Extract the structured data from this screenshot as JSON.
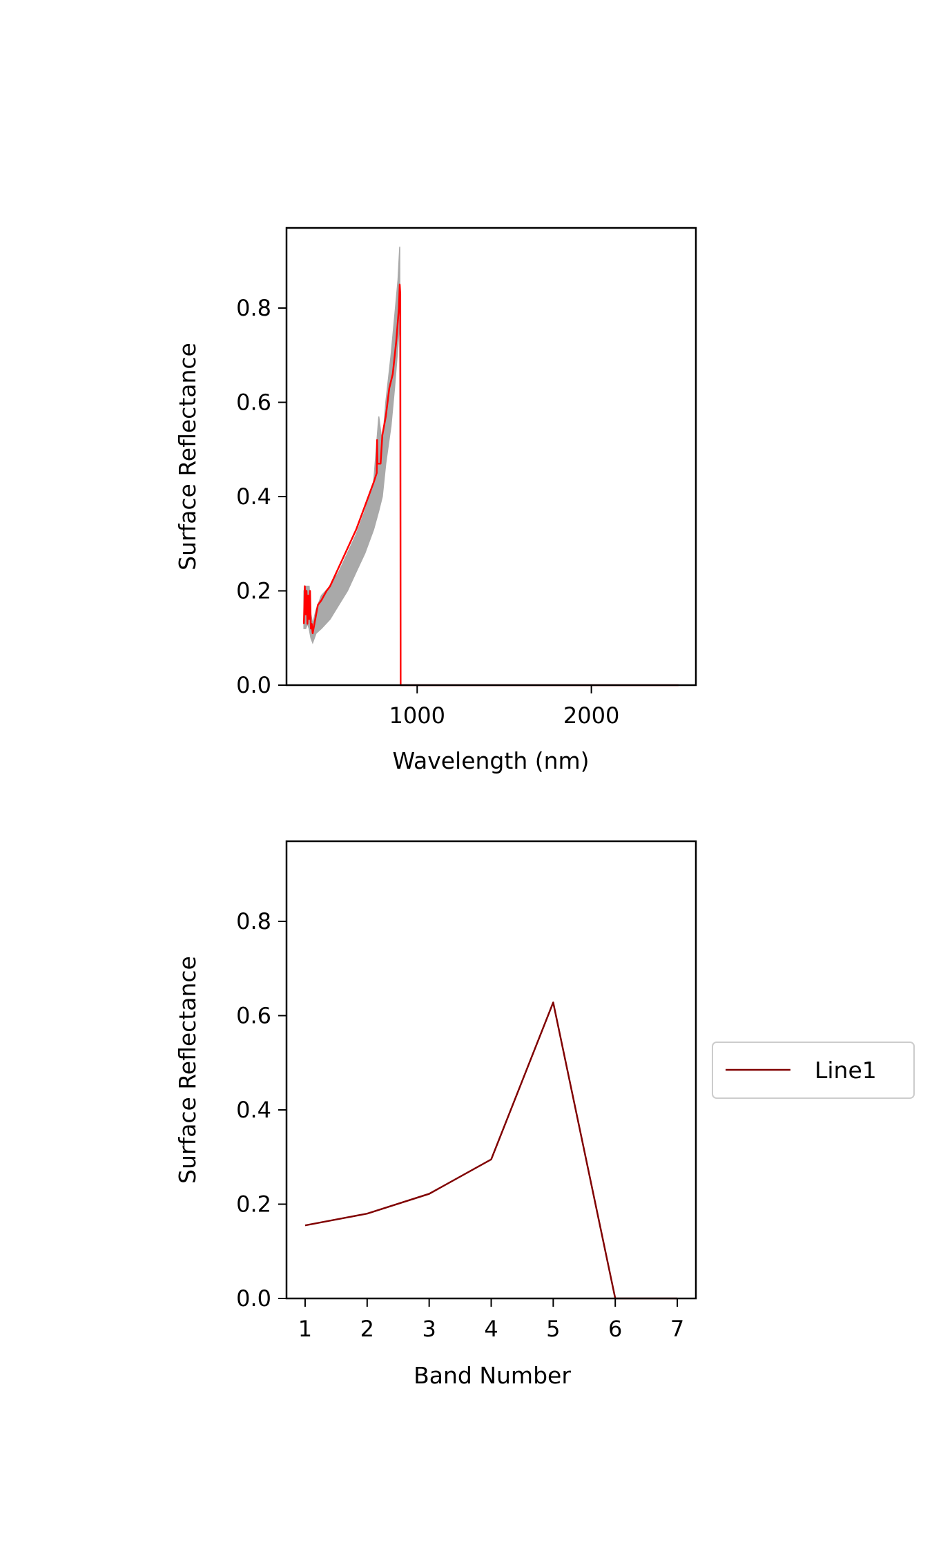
{
  "chart_data": [
    {
      "type": "line",
      "title": "",
      "xlabel": "Wavelength (nm)",
      "ylabel": "Surface Reflectance",
      "xlim": [
        250,
        2600
      ],
      "ylim": [
        0.0,
        0.97
      ],
      "xticks": [
        1000,
        2000
      ],
      "xtick_labels": [
        "1000",
        "2000"
      ],
      "yticks": [
        0.0,
        0.2,
        0.4,
        0.6,
        0.8
      ],
      "ytick_labels": [
        "0.0",
        "0.2",
        "0.4",
        "0.6",
        "0.8"
      ],
      "grid": false,
      "colors": {
        "samples": "#a9a9a9",
        "mean": "#ff0000"
      },
      "series": [
        {
          "role": "samples",
          "x": [
            350,
            360,
            370,
            380,
            390,
            400,
            420,
            450,
            500,
            550,
            600,
            650,
            700,
            750,
            780,
            800,
            820,
            850,
            870,
            890,
            900,
            905
          ],
          "upper": [
            0.2,
            0.21,
            0.21,
            0.21,
            0.15,
            0.13,
            0.16,
            0.19,
            0.21,
            0.24,
            0.28,
            0.32,
            0.37,
            0.43,
            0.57,
            0.51,
            0.6,
            0.7,
            0.78,
            0.86,
            0.93,
            0.0
          ],
          "lower": [
            0.12,
            0.12,
            0.13,
            0.12,
            0.1,
            0.09,
            0.11,
            0.12,
            0.14,
            0.17,
            0.2,
            0.24,
            0.28,
            0.33,
            0.37,
            0.4,
            0.47,
            0.55,
            0.63,
            0.72,
            0.78,
            0.0
          ]
        },
        {
          "role": "mean",
          "x": [
            350,
            355,
            360,
            365,
            370,
            375,
            380,
            385,
            390,
            395,
            400,
            410,
            420,
            430,
            450,
            480,
            500,
            550,
            600,
            650,
            700,
            750,
            768,
            770,
            772,
            790,
            800,
            820,
            840,
            860,
            880,
            895,
            900,
            903,
            905,
            906,
            1000,
            1500,
            2000,
            2500
          ],
          "y": [
            0.13,
            0.21,
            0.15,
            0.2,
            0.13,
            0.19,
            0.14,
            0.2,
            0.12,
            0.13,
            0.11,
            0.13,
            0.15,
            0.17,
            0.18,
            0.2,
            0.21,
            0.25,
            0.29,
            0.33,
            0.38,
            0.43,
            0.45,
            0.52,
            0.47,
            0.47,
            0.53,
            0.57,
            0.63,
            0.66,
            0.73,
            0.8,
            0.85,
            0.83,
            0.0,
            0.0,
            0.0,
            0.0,
            0.0,
            0.0
          ]
        }
      ]
    },
    {
      "type": "line",
      "title": "",
      "xlabel": "Band Number",
      "ylabel": "Surface Reflectance",
      "xlim": [
        0.7,
        7.3
      ],
      "ylim": [
        0.0,
        0.97
      ],
      "xticks": [
        1,
        2,
        3,
        4,
        5,
        6,
        7
      ],
      "xtick_labels": [
        "1",
        "2",
        "3",
        "4",
        "5",
        "6",
        "7"
      ],
      "yticks": [
        0.0,
        0.2,
        0.4,
        0.6,
        0.8
      ],
      "ytick_labels": [
        "0.0",
        "0.2",
        "0.4",
        "0.6",
        "0.8"
      ],
      "grid": false,
      "legend_position": "right",
      "series": [
        {
          "name": "Line1",
          "color": "#800000",
          "x": [
            1,
            2,
            3,
            4,
            5,
            6,
            7
          ],
          "values": [
            0.155,
            0.18,
            0.222,
            0.295,
            0.628,
            0.0,
            0.0
          ]
        }
      ]
    }
  ]
}
